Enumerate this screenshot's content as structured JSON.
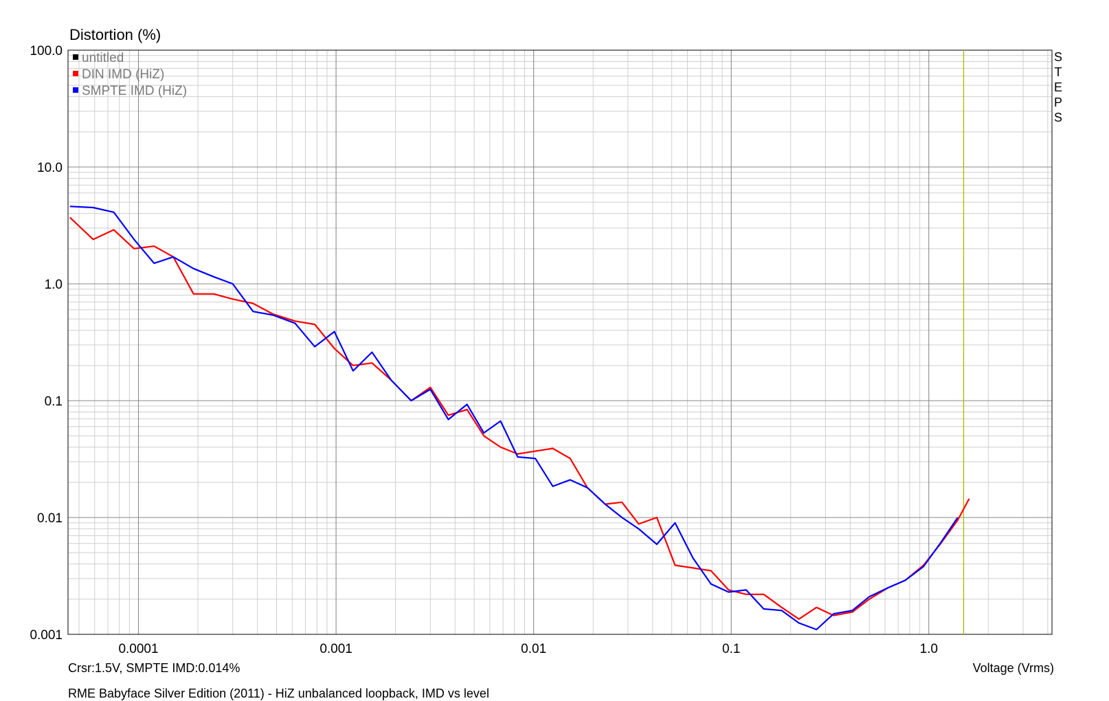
{
  "chart_data": {
    "type": "line",
    "title": "RME Babyface Silver Edition (2011) - HiZ unbalanced loopback, IMD vs level",
    "ylabel": "Distortion (%)",
    "xlabel": "Voltage (Vrms)",
    "cursor_readout": "Crsr:1.5V, SMPTE IMD:0.014%",
    "right_label": "STEPS",
    "x_scale": "log",
    "y_scale": "log",
    "xlim": [
      4.4e-05,
      4.2
    ],
    "ylim": [
      0.001,
      100.0
    ],
    "x_ticks": [
      0.0001,
      0.001,
      0.01,
      0.1,
      1.0
    ],
    "x_tick_labels": [
      "0.0001",
      "0.001",
      "0.01",
      "0.1",
      "1.0"
    ],
    "y_ticks": [
      0.001,
      0.01,
      0.1,
      1.0,
      10.0,
      100.0
    ],
    "y_tick_labels": [
      "0.001",
      "0.01",
      "0.1",
      "1.0",
      "10.0",
      "100.0"
    ],
    "grid": true,
    "legend_position": "top-left",
    "cursor_x": 1.5,
    "series": [
      {
        "name": "untitled",
        "color": "#000000",
        "x": [],
        "y": []
      },
      {
        "name": "DIN IMD (HiZ)",
        "color": "#ff0000",
        "x": [
          4.5e-05,
          5.9e-05,
          7.5e-05,
          9.5e-05,
          0.00012,
          0.00015,
          0.00019,
          0.00024,
          0.0003,
          0.00038,
          0.00048,
          0.00062,
          0.00078,
          0.00098,
          0.00122,
          0.00152,
          0.0019,
          0.0024,
          0.003,
          0.0037,
          0.0046,
          0.0056,
          0.0068,
          0.0083,
          0.0102,
          0.0125,
          0.0153,
          0.0187,
          0.023,
          0.028,
          0.034,
          0.042,
          0.052,
          0.064,
          0.079,
          0.097,
          0.119,
          0.146,
          0.18,
          0.22,
          0.27,
          0.33,
          0.41,
          0.5,
          0.62,
          0.76,
          0.94,
          1.15,
          1.4,
          1.6
        ],
        "y": [
          3.7,
          2.4,
          2.9,
          2.0,
          2.1,
          1.7,
          0.82,
          0.82,
          0.74,
          0.68,
          0.55,
          0.48,
          0.45,
          0.28,
          0.2,
          0.21,
          0.15,
          0.1,
          0.13,
          0.075,
          0.084,
          0.05,
          0.04,
          0.035,
          0.037,
          0.039,
          0.032,
          0.018,
          0.013,
          0.0135,
          0.0088,
          0.01,
          0.0039,
          0.0037,
          0.0035,
          0.0024,
          0.0022,
          0.0022,
          0.0017,
          0.00135,
          0.0017,
          0.00145,
          0.00155,
          0.002,
          0.0025,
          0.0029,
          0.0039,
          0.006,
          0.0095,
          0.0145
        ]
      },
      {
        "name": "SMPTE IMD (HiZ)",
        "color": "#0000ff",
        "x": [
          4.5e-05,
          5.9e-05,
          7.5e-05,
          9.5e-05,
          0.00012,
          0.00015,
          0.00019,
          0.00024,
          0.0003,
          0.00038,
          0.00048,
          0.00062,
          0.00078,
          0.00098,
          0.00122,
          0.00152,
          0.0019,
          0.0024,
          0.003,
          0.0037,
          0.0046,
          0.0056,
          0.0068,
          0.0083,
          0.0102,
          0.0125,
          0.0153,
          0.0187,
          0.023,
          0.028,
          0.034,
          0.042,
          0.052,
          0.064,
          0.079,
          0.097,
          0.119,
          0.146,
          0.18,
          0.22,
          0.27,
          0.33,
          0.41,
          0.5,
          0.62,
          0.76,
          0.94,
          1.15,
          1.4
        ],
        "y": [
          4.6,
          4.5,
          4.1,
          2.4,
          1.5,
          1.7,
          1.35,
          1.15,
          1.0,
          0.58,
          0.54,
          0.46,
          0.29,
          0.39,
          0.18,
          0.26,
          0.15,
          0.1,
          0.125,
          0.069,
          0.093,
          0.053,
          0.067,
          0.033,
          0.032,
          0.0185,
          0.021,
          0.018,
          0.013,
          0.01,
          0.008,
          0.0059,
          0.009,
          0.0045,
          0.0027,
          0.0023,
          0.0024,
          0.00165,
          0.0016,
          0.00125,
          0.0011,
          0.0015,
          0.0016,
          0.0021,
          0.0025,
          0.0029,
          0.0038,
          0.0061,
          0.01
        ]
      }
    ]
  }
}
